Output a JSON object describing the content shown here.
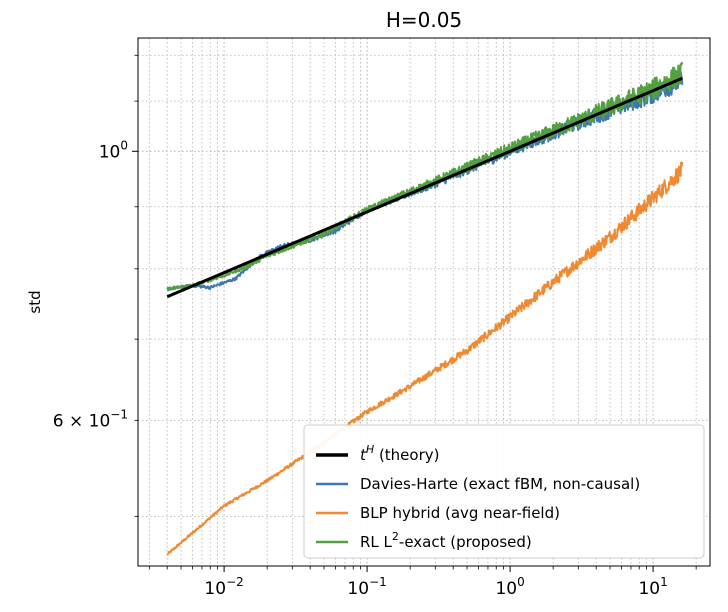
{
  "chart_data": {
    "type": "line",
    "title": "H=0.05",
    "xlabel": "",
    "ylabel": "std",
    "x_scale": "log",
    "y_scale": "log",
    "xlim": [
      0.0025,
      25
    ],
    "ylim": [
      0.455,
      1.24
    ],
    "grid": true,
    "grid_minor": true,
    "legend_position": "lower-right",
    "x_ticks": [
      {
        "value": 0.01,
        "base": "10",
        "exp": "−2"
      },
      {
        "value": 0.1,
        "base": "10",
        "exp": "−1"
      },
      {
        "value": 1,
        "base": "10",
        "exp": "0"
      },
      {
        "value": 10,
        "base": "10",
        "exp": "1"
      }
    ],
    "y_ticks": [
      {
        "value": 1.0,
        "base": "10",
        "exp": "0",
        "prefix": ""
      },
      {
        "value": 0.6,
        "base": "10",
        "exp": "−1",
        "prefix": "6 × "
      }
    ],
    "series": [
      {
        "name": "t^H (theory)",
        "legend_label": {
          "main": "t",
          "sup": "H",
          "rest": " (theory)"
        },
        "color": "#000000",
        "width": 3,
        "noise": 0,
        "x": [
          0.004,
          0.01,
          0.1,
          1,
          16
        ],
        "y": [
          0.7586,
          0.7943,
          0.8913,
          1.0,
          1.1487
        ]
      },
      {
        "name": "Davies-Harte (exact fBM, non-causal)",
        "legend_label": {
          "main": "Davies-Harte (exact fBM, non-causal)",
          "sup": "",
          "rest": ""
        },
        "color": "#3d76b5",
        "width": 2,
        "noise": 0.013,
        "x": [
          0.004,
          0.006,
          0.008,
          0.012,
          0.018,
          0.025,
          0.04,
          0.06,
          0.1,
          0.3,
          1,
          3,
          10,
          16
        ],
        "y": [
          0.77,
          0.775,
          0.772,
          0.785,
          0.82,
          0.835,
          0.845,
          0.86,
          0.895,
          0.94,
          1.0,
          1.055,
          1.115,
          1.145
        ]
      },
      {
        "name": "BLP hybrid (avg near-field)",
        "legend_label": {
          "main": "BLP hybrid (avg near-field)",
          "sup": "",
          "rest": ""
        },
        "color": "#ef8a33",
        "width": 2,
        "noise": 0.011,
        "x": [
          0.004,
          0.01,
          0.02,
          0.05,
          0.1,
          0.2,
          0.5,
          1,
          2,
          5,
          10,
          16
        ],
        "y": [
          0.465,
          0.51,
          0.535,
          0.575,
          0.61,
          0.64,
          0.685,
          0.73,
          0.78,
          0.85,
          0.915,
          0.965
        ]
      },
      {
        "name": "RL L²-exact (proposed)",
        "legend_label": {
          "main": "RL L",
          "sup": "2",
          "rest": "-exact (proposed)"
        },
        "color": "#53a13e",
        "width": 2,
        "noise": 0.015,
        "x": [
          0.004,
          0.006,
          0.01,
          0.015,
          0.02,
          0.03,
          0.05,
          0.1,
          0.3,
          1,
          3,
          10,
          16
        ],
        "y": [
          0.77,
          0.775,
          0.79,
          0.805,
          0.82,
          0.835,
          0.855,
          0.895,
          0.945,
          1.005,
          1.06,
          1.125,
          1.16
        ]
      }
    ]
  }
}
